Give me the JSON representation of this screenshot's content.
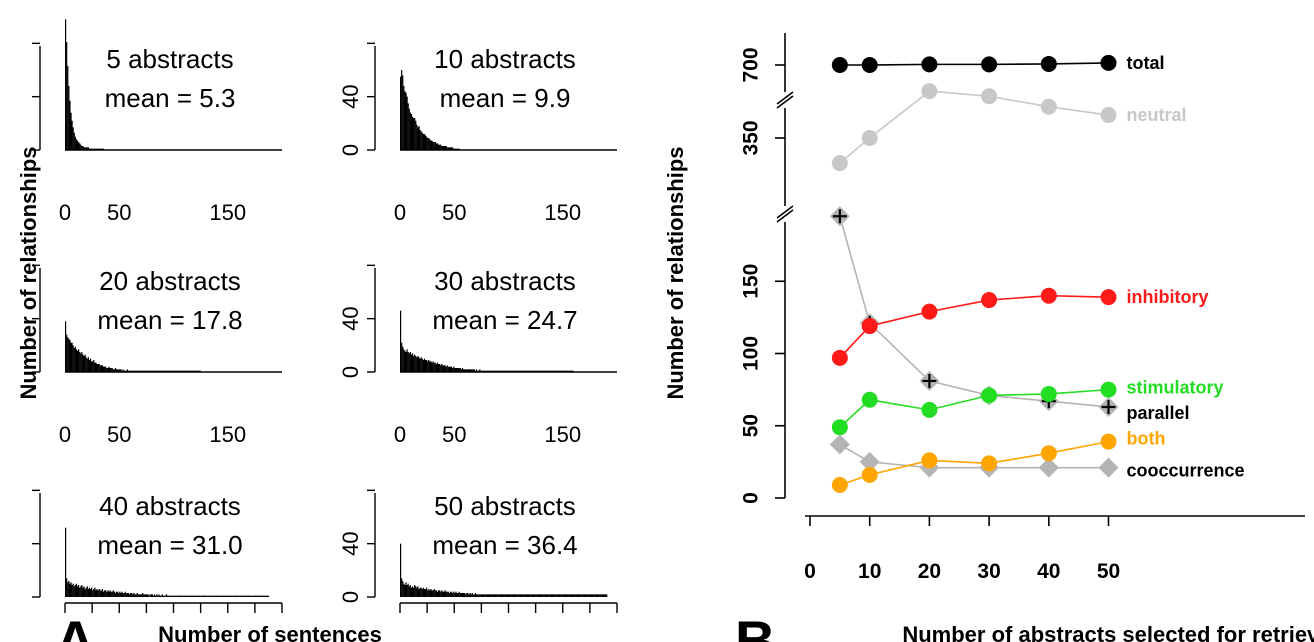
{
  "panel_a": {
    "letter": "A",
    "xlabel": "Number of sentences",
    "ylabel": "Number of relationships",
    "x_ticks": [
      "0",
      "50",
      "150"
    ],
    "y_ticks": [
      "0",
      "40"
    ],
    "mean_prefix": "mean = "
  },
  "panel_b": {
    "letter": "B",
    "xlabel": "Number of abstracts selected for retrieval",
    "ylabel": "Number of relationships",
    "x_ticks": [
      "0",
      "10",
      "20",
      "30",
      "40",
      "50"
    ],
    "y_ticks_low": [
      "0",
      "50",
      "100",
      "150"
    ],
    "y_ticks_high": [
      "350",
      "700"
    ]
  },
  "colors": {
    "total": "#000000",
    "neutral": "#c8c8c8",
    "inhibitory": "#ff1a1a",
    "stimulatory": "#22dd22",
    "parallel": "#b4b4b4",
    "both": "#ffa500",
    "cooccurrence": "#b4b4b4",
    "label_parallel": "#000000",
    "label_cooccurrence": "#000000"
  },
  "chart_data": [
    {
      "type": "bar",
      "title": "5 abstracts",
      "mean_label": "5.3",
      "xlim": [
        0,
        200
      ],
      "ylim": [
        0,
        105
      ],
      "values": [
        98,
        81,
        63,
        48,
        37,
        28,
        22,
        17,
        13,
        10,
        8,
        7,
        6,
        5,
        4,
        3,
        3,
        2,
        2,
        2,
        2,
        2,
        1,
        1,
        1,
        1,
        1,
        1,
        1,
        1,
        1,
        1,
        1,
        1,
        1,
        1
      ]
    },
    {
      "type": "bar",
      "title": "10 abstracts",
      "mean_label": "9.9",
      "xlim": [
        0,
        200
      ],
      "ylim": [
        0,
        105
      ],
      "values": [
        55,
        60,
        56,
        48,
        44,
        43,
        40,
        35,
        31,
        28,
        27,
        25,
        24,
        24,
        22,
        19,
        17,
        18,
        15,
        14,
        13,
        12,
        12,
        11,
        10,
        9,
        9,
        8,
        7,
        7,
        6,
        6,
        6,
        5,
        5,
        4,
        4,
        4,
        3,
        3,
        3,
        3,
        3,
        2,
        2,
        2,
        2,
        2,
        2,
        1,
        1,
        1,
        1,
        1,
        1
      ]
    },
    {
      "type": "bar",
      "title": "20 abstracts",
      "mean_label": "17.8",
      "xlim": [
        0,
        200
      ],
      "ylim": [
        0,
        105
      ],
      "values": [
        38,
        28,
        26,
        25,
        24,
        22,
        22,
        20,
        18,
        19,
        17,
        16,
        17,
        15,
        14,
        15,
        13,
        12,
        13,
        11,
        10,
        11,
        9,
        10,
        8,
        8,
        9,
        7,
        7,
        6,
        6,
        6,
        5,
        5,
        5,
        4,
        4,
        4,
        3,
        3,
        4,
        3,
        3,
        3,
        2,
        2,
        3,
        2,
        2,
        2,
        2,
        2,
        1,
        2,
        1,
        1,
        1,
        2,
        1,
        1,
        1,
        1,
        1,
        1,
        1,
        1,
        1,
        1,
        1,
        1,
        1,
        1,
        1,
        1,
        1,
        1,
        1,
        1,
        1,
        1,
        1,
        1,
        1,
        1,
        1,
        1,
        1,
        1,
        1,
        1,
        1,
        1,
        1,
        1,
        1,
        1,
        1,
        1,
        1,
        1,
        1,
        1,
        1,
        1,
        1,
        1,
        1,
        1,
        1,
        1,
        1,
        1,
        1,
        1,
        1,
        1,
        1,
        1,
        1,
        1,
        1,
        1,
        1,
        1,
        1
      ]
    },
    {
      "type": "bar",
      "title": "30 abstracts",
      "mean_label": "24.7",
      "xlim": [
        0,
        200
      ],
      "ylim": [
        0,
        105
      ],
      "values": [
        46,
        22,
        19,
        17,
        16,
        15,
        17,
        15,
        14,
        15,
        13,
        14,
        12,
        13,
        12,
        11,
        12,
        11,
        10,
        11,
        10,
        9,
        10,
        9,
        9,
        8,
        9,
        8,
        8,
        7,
        8,
        7,
        7,
        6,
        7,
        6,
        6,
        5,
        6,
        5,
        5,
        5,
        4,
        5,
        4,
        4,
        4,
        4,
        3,
        4,
        3,
        3,
        3,
        3,
        3,
        3,
        2,
        3,
        2,
        2,
        2,
        2,
        2,
        2,
        2,
        2,
        2,
        2,
        2,
        1,
        2,
        1,
        1,
        2,
        1,
        1,
        1,
        1,
        1,
        1,
        1,
        1,
        1,
        1,
        1,
        1,
        1,
        1,
        1,
        1,
        1,
        1,
        1,
        1,
        1,
        1,
        1,
        1,
        1,
        1,
        1,
        1,
        1,
        1,
        1,
        1,
        1,
        1,
        1,
        1,
        1,
        1,
        1,
        1,
        1,
        1,
        1,
        1,
        1,
        1,
        1,
        1,
        1,
        1,
        1,
        1,
        1,
        1,
        1,
        1,
        1,
        1,
        1,
        1,
        1,
        1,
        1,
        1,
        1,
        1,
        1,
        1,
        1,
        1,
        1,
        1,
        1,
        1,
        1,
        1,
        1,
        1,
        1,
        1,
        1,
        1,
        1,
        1,
        1,
        1
      ]
    },
    {
      "type": "bar",
      "title": "40 abstracts",
      "mean_label": "31.0",
      "xlim": [
        0,
        200
      ],
      "ylim": [
        0,
        105
      ],
      "values": [
        52,
        14,
        11,
        12,
        10,
        11,
        9,
        10,
        8,
        9,
        10,
        8,
        9,
        7,
        8,
        9,
        7,
        8,
        6,
        7,
        8,
        6,
        7,
        6,
        7,
        5,
        6,
        7,
        5,
        6,
        5,
        6,
        5,
        5,
        6,
        4,
        5,
        5,
        4,
        5,
        4,
        5,
        4,
        4,
        5,
        4,
        3,
        4,
        4,
        3,
        4,
        3,
        4,
        3,
        3,
        4,
        3,
        3,
        3,
        2,
        3,
        3,
        2,
        3,
        2,
        2,
        3,
        2,
        2,
        2,
        2,
        3,
        2,
        2,
        2,
        2,
        2,
        1,
        2,
        2,
        2,
        1,
        2,
        1,
        2,
        1,
        2,
        1,
        1,
        2,
        1,
        1,
        1,
        2,
        1,
        1,
        1,
        1,
        1,
        1,
        1,
        1,
        1,
        1,
        1,
        1,
        1,
        1,
        1,
        1,
        1,
        1,
        1,
        1,
        1,
        1,
        1,
        1,
        1,
        1,
        1,
        1,
        1,
        1,
        1,
        1,
        1,
        1,
        1,
        1,
        1,
        1,
        1,
        1,
        1,
        1,
        1,
        1,
        1,
        1,
        1,
        1,
        1,
        1,
        1,
        1,
        1,
        1,
        1,
        1,
        1,
        1,
        1,
        1,
        1,
        1,
        1,
        1,
        1,
        1,
        1,
        1,
        1,
        1,
        1,
        1,
        1,
        1,
        1,
        1,
        1,
        1,
        1,
        1,
        1,
        1,
        1,
        1,
        1,
        1,
        1,
        1,
        1,
        1,
        1,
        1,
        1,
        1
      ]
    },
    {
      "type": "bar",
      "title": "50 abstracts",
      "mean_label": "36.4",
      "xlim": [
        0,
        200
      ],
      "ylim": [
        0,
        105
      ],
      "values": [
        40,
        14,
        12,
        10,
        9,
        11,
        9,
        10,
        8,
        9,
        7,
        8,
        7,
        9,
        8,
        7,
        8,
        6,
        7,
        7,
        6,
        7,
        6,
        6,
        7,
        5,
        6,
        5,
        6,
        5,
        5,
        6,
        5,
        5,
        4,
        5,
        5,
        4,
        5,
        4,
        4,
        5,
        4,
        4,
        4,
        3,
        4,
        4,
        3,
        4,
        3,
        4,
        3,
        3,
        4,
        3,
        3,
        3,
        3,
        3,
        2,
        3,
        3,
        2,
        3,
        2,
        3,
        2,
        2,
        3,
        2,
        2,
        2,
        2,
        2,
        2,
        2,
        2,
        2,
        2,
        2,
        2,
        2,
        2,
        2,
        2,
        2,
        2,
        2,
        2,
        2,
        2,
        2,
        2,
        2,
        2,
        2,
        2,
        2,
        2,
        2,
        2,
        2,
        2,
        2,
        2,
        2,
        2,
        2,
        2,
        2,
        2,
        2,
        2,
        2,
        2,
        2,
        2,
        2,
        2,
        2,
        2,
        2,
        2,
        2,
        2,
        2,
        2,
        2,
        2,
        2,
        2,
        2,
        2,
        2,
        2,
        2,
        2,
        2,
        2,
        2,
        2,
        2,
        2,
        2,
        2,
        2,
        2,
        2,
        2,
        2,
        2,
        2,
        2,
        2,
        2,
        2,
        2,
        2,
        2,
        2,
        2,
        2,
        2,
        2,
        2,
        2,
        2,
        2,
        2,
        2,
        2,
        2,
        2,
        2,
        2,
        2,
        2,
        2,
        2,
        2,
        2,
        2,
        2,
        2,
        2,
        2,
        2,
        2,
        2,
        2
      ]
    },
    {
      "type": "line",
      "x": [
        5,
        10,
        20,
        30,
        40,
        50
      ],
      "xlim": [
        0,
        60
      ],
      "broken_y_axis": [
        [
          0,
          200
        ],
        [
          250,
          700
        ]
      ],
      "series": [
        {
          "name": "total",
          "color_key": "total",
          "marker": "circle",
          "values": [
            700,
            700,
            703,
            703,
            705,
            710
          ]
        },
        {
          "name": "neutral",
          "color_key": "neutral",
          "marker": "circle",
          "values": [
            230,
            350,
            575,
            550,
            500,
            460
          ]
        },
        {
          "name": "inhibitory",
          "color_key": "inhibitory",
          "marker": "circle",
          "values": [
            97,
            119,
            129,
            137,
            140,
            139
          ]
        },
        {
          "name": "stimulatory",
          "color_key": "stimulatory",
          "marker": "circle",
          "values": [
            49,
            68,
            61,
            71,
            72,
            75
          ]
        },
        {
          "name": "parallel",
          "color_key": "parallel",
          "marker": "diamond-plus",
          "values": [
            195,
            121,
            81,
            71,
            67,
            63
          ]
        },
        {
          "name": "both",
          "color_key": "both",
          "marker": "circle",
          "values": [
            9,
            16,
            26,
            24,
            31,
            39
          ]
        },
        {
          "name": "cooccurrence",
          "color_key": "cooccurrence",
          "marker": "diamond",
          "values": [
            37,
            25,
            21,
            21,
            21,
            21
          ]
        }
      ]
    }
  ]
}
